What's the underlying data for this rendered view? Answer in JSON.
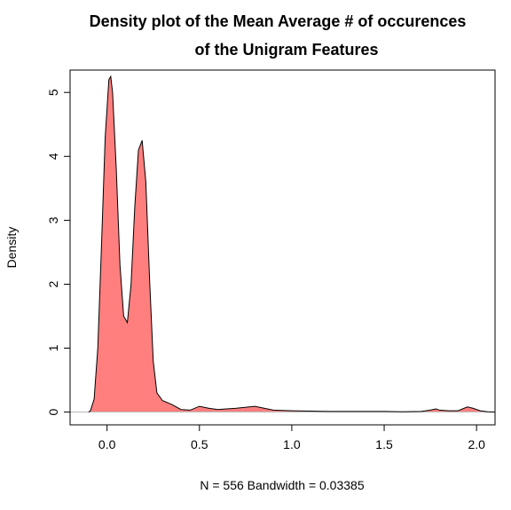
{
  "chart_data": {
    "type": "area",
    "title_line1": "Density plot of the Mean Average # of occurences",
    "title_line2": "of the Unigram Features",
    "xlabel": "N = 556   Bandwidth = 0.03385",
    "ylabel": "Density",
    "xlim": [
      -0.2,
      2.1
    ],
    "ylim": [
      -0.2,
      5.35
    ],
    "xticks": [
      0.0,
      0.5,
      1.0,
      1.5,
      2.0
    ],
    "xtick_labels": [
      "0.0",
      "0.5",
      "1.0",
      "1.5",
      "2.0"
    ],
    "yticks": [
      0,
      1,
      2,
      3,
      4,
      5
    ],
    "ytick_labels": [
      "0",
      "1",
      "2",
      "3",
      "4",
      "5"
    ],
    "baseline_y": 0,
    "fill_color": "#ff7f7f",
    "line_color": "#000000",
    "baseline_color": "#bebebe",
    "series": [
      {
        "x": [
          -0.1,
          -0.09,
          -0.07,
          -0.05,
          -0.03,
          -0.01,
          0.01,
          0.02,
          0.03,
          0.05,
          0.07,
          0.09,
          0.11,
          0.13,
          0.15,
          0.17,
          0.19,
          0.21,
          0.23,
          0.25,
          0.27,
          0.3,
          0.35,
          0.4,
          0.45,
          0.5,
          0.55,
          0.6,
          0.7,
          0.8,
          0.85,
          0.9,
          1.0,
          1.2,
          1.4,
          1.5,
          1.6,
          1.7,
          1.75,
          1.78,
          1.8,
          1.85,
          1.9,
          1.95,
          1.98,
          2.02,
          2.06,
          2.1
        ],
        "y": [
          0.0,
          0.02,
          0.2,
          1.0,
          2.6,
          4.3,
          5.2,
          5.25,
          5.0,
          3.8,
          2.3,
          1.5,
          1.4,
          2.0,
          3.2,
          4.1,
          4.25,
          3.6,
          2.1,
          0.8,
          0.3,
          0.18,
          0.12,
          0.04,
          0.03,
          0.09,
          0.06,
          0.04,
          0.06,
          0.09,
          0.06,
          0.03,
          0.02,
          0.01,
          0.01,
          0.01,
          0.005,
          0.01,
          0.03,
          0.05,
          0.03,
          0.02,
          0.02,
          0.08,
          0.06,
          0.02,
          0.005,
          0.0
        ]
      }
    ]
  }
}
